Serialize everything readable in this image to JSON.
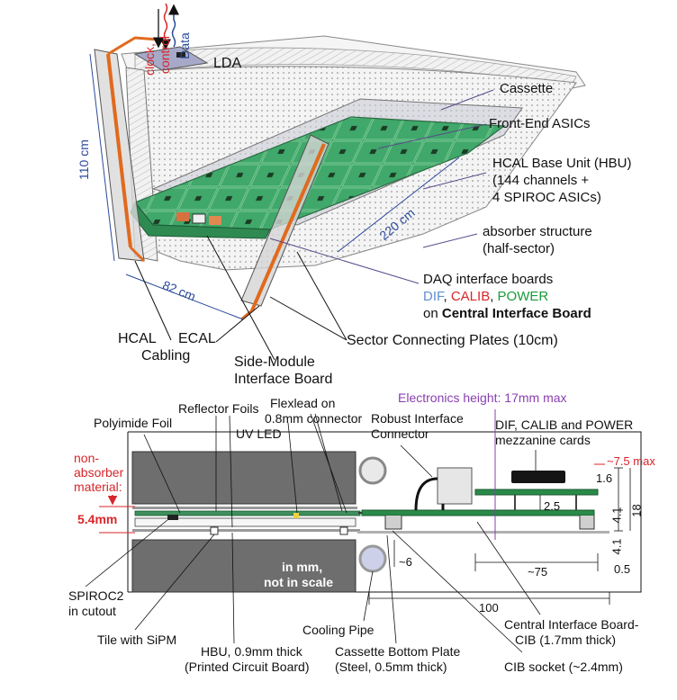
{
  "top": {
    "lda": "LDA",
    "clock": "clock,",
    "control": "control",
    "data": "Data",
    "cassette": "Cassette",
    "asics": "Front-End ASICs",
    "hbu_1": "HCAL Base Unit (HBU)",
    "hbu_2": "(144 channels +",
    "hbu_3": "4 SPIROC ASICs)",
    "absorber_1": "absorber structure",
    "absorber_2": "(half-sector)",
    "daq_1": "DAQ interface boards",
    "daq_dif": "DIF",
    "daq_comma1": ", ",
    "daq_calib": "CALIB",
    "daq_comma2": ", ",
    "daq_power": "POWER",
    "daq_3a": "on ",
    "daq_3b": "Central Interface Board",
    "dim_110": "110 cm",
    "dim_82": "82 cm",
    "dim_220": "220 cm",
    "hcal": "HCAL",
    "cabling": "Cabling",
    "ecal": "ECAL",
    "side_1": "Side-Module",
    "side_2": "Interface Board",
    "sector": "Sector Connecting Plates (10cm)"
  },
  "bottom": {
    "electronics_height": "Electronics height: 17mm max",
    "reflector": "Reflector Foils",
    "flexlead_1": "Flexlead on",
    "flexlead_2": "0.8mm connector",
    "polyimide": "Polyimide Foil",
    "robust_1": "Robust Interface",
    "robust_2": "Connector",
    "mezz_1": "DIF, CALIB and POWER",
    "mezz_2": "mezzanine cards",
    "uvled": "UV LED",
    "nonabs_1": "non-",
    "nonabs_2": "absorber",
    "nonabs_3": "material:",
    "thick": "5.4mm",
    "max75": "~7.5 max",
    "d16": "1.6",
    "d25": "2.5",
    "d41a": "4.1",
    "d41b": "4.1",
    "d18": "18",
    "d05": "0.5",
    "d6": "~6",
    "d75": "~75",
    "d100": "100",
    "inmm_1": "in mm,",
    "inmm_2": "not in scale",
    "spiroc_1": "SPIROC2",
    "spiroc_2": "in cutout",
    "tile": "Tile with SiPM",
    "cooling": "Cooling Pipe",
    "hbu_1": "HBU, 0.9mm thick",
    "hbu_2": "(Printed Circuit Board)",
    "bottomplate_1": "Cassette Bottom Plate",
    "bottomplate_2": "(Steel, 0.5mm thick)",
    "cib_1": "Central Interface Board-",
    "cib_2": "CIB (1.7mm thick)",
    "socket": "CIB socket (~2.4mm)"
  }
}
